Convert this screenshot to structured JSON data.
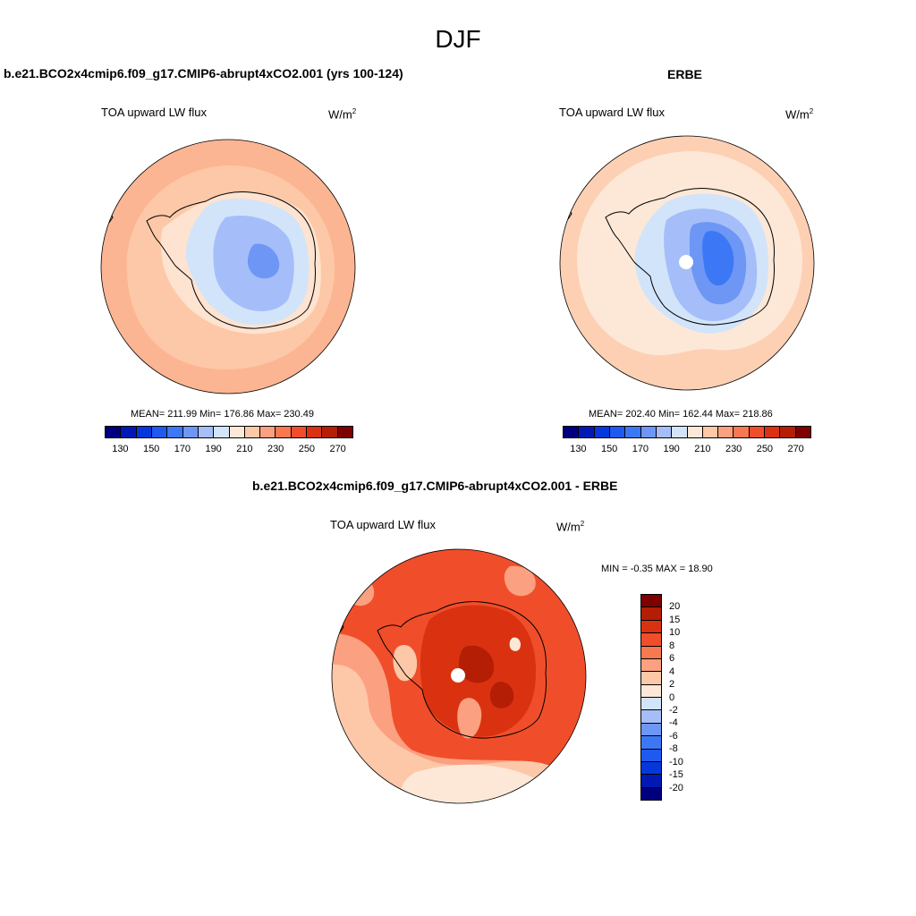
{
  "main_title": "DJF",
  "panels": {
    "model": {
      "title": "b.e21.BCO2x4cmip6.f09_g17.CMIP6-abrupt4xCO2.001 (yrs 100-124)",
      "variable": "TOA upward LW flux",
      "units_base": "W/m",
      "units_exp": "2",
      "stats": "MEAN= 211.99  Min= 176.86  Max= 230.49"
    },
    "obs": {
      "title": "ERBE",
      "variable": "TOA upward LW flux",
      "units_base": "W/m",
      "units_exp": "2",
      "stats": "MEAN= 202.40  Min= 162.44  Max= 218.86"
    },
    "diff": {
      "title": "b.e21.BCO2x4cmip6.f09_g17.CMIP6-abrupt4xCO2.001 - ERBE",
      "variable": "TOA upward LW flux",
      "units_base": "W/m",
      "units_exp": "2",
      "stats": "MIN =  -0.35 MAX =  18.90"
    }
  },
  "abs_colorbar": {
    "colors": [
      "#00007f",
      "#0019b4",
      "#0538dc",
      "#1e5af0",
      "#3c78f5",
      "#6e96f5",
      "#a5befa",
      "#d2e4fa",
      "#fde8d8",
      "#fcc8a8",
      "#fba080",
      "#f87850",
      "#f04e2a",
      "#da3210",
      "#b41e05",
      "#7f0000"
    ],
    "ticks": [
      "130",
      "150",
      "170",
      "190",
      "210",
      "230",
      "250",
      "270"
    ]
  },
  "diff_colorbar": {
    "colors": [
      "#7f0000",
      "#b41e05",
      "#da3210",
      "#f04e2a",
      "#f87850",
      "#fba080",
      "#fcc8a8",
      "#fde8d8",
      "#d2e4fa",
      "#a5befa",
      "#6e96f5",
      "#3c78f5",
      "#1e5af0",
      "#0538dc",
      "#0019b4",
      "#00007f"
    ],
    "ticks": [
      "20",
      "15",
      "10",
      "8",
      "6",
      "4",
      "2",
      "0",
      "-2",
      "-4",
      "-6",
      "-8",
      "-10",
      "-15",
      "-20"
    ]
  },
  "map_colors": {
    "model_ocean_outer": "#fcb592",
    "model_ocean": "#fdc8a8",
    "model_coast": "#fde3d0",
    "model_ice_1": "#d2e4fa",
    "model_ice_2": "#a5befa",
    "model_ice_3": "#6e96f5",
    "obs_ocean_outer": "#fdd0b4",
    "obs_ocean": "#fde8d8",
    "obs_ice_1": "#d2e4fa",
    "obs_ice_2": "#a5befa",
    "obs_ice_3": "#6e96f5",
    "obs_ice_4": "#3c78f5",
    "diff_base": "#f04e2a",
    "diff_mid": "#da3210",
    "diff_dark": "#b41e05",
    "diff_light": "#fba080",
    "diff_lighter": "#fcc8a8",
    "diff_palest": "#fde8d8",
    "coastline": "#000000"
  }
}
